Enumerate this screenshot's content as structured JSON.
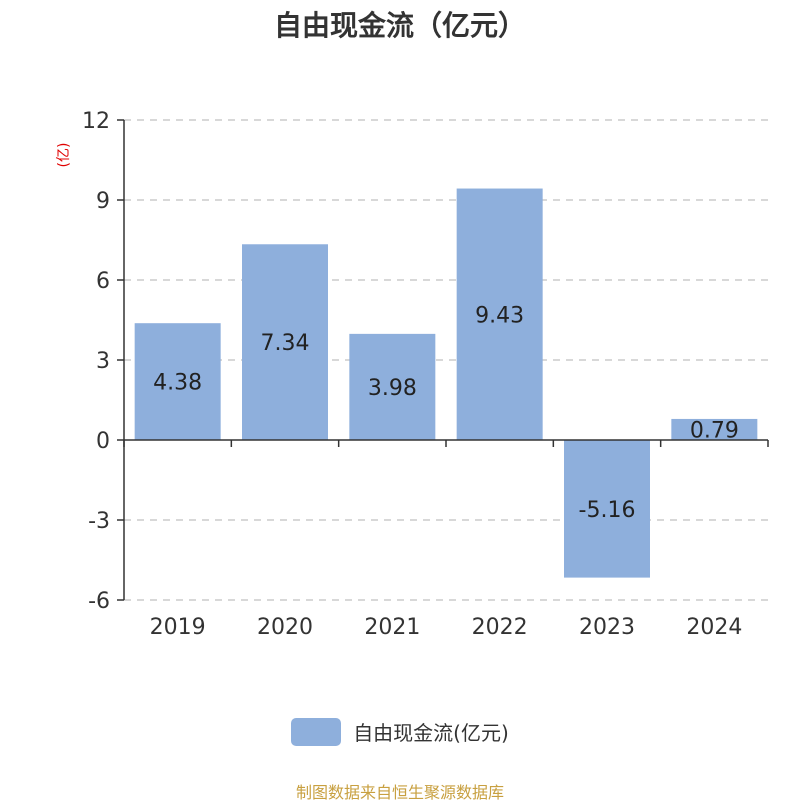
{
  "colors": {
    "bar": "#8eafdc",
    "axis": "#333333",
    "grid": "#cccccc",
    "unit": "#e00000",
    "source": "#c8a040"
  },
  "chart_data": {
    "type": "bar",
    "title": "自由现金流（亿元）",
    "unit_label": "(亿)",
    "categories": [
      "2019",
      "2020",
      "2021",
      "2022",
      "2023",
      "2024"
    ],
    "series": [
      {
        "name": "自由现金流(亿元)",
        "values": [
          4.38,
          7.34,
          3.98,
          9.43,
          -5.16,
          0.79
        ]
      }
    ],
    "data_labels": [
      "4.38",
      "7.34",
      "3.98",
      "9.43",
      "-5.16",
      "0.79"
    ],
    "ylim": [
      -6,
      12
    ],
    "yticks": [
      12,
      9,
      6,
      3,
      0,
      -3,
      -6
    ],
    "grid": true,
    "legend": "bottom-center"
  },
  "footer": {
    "source": "制图数据来自恒生聚源数据库"
  }
}
